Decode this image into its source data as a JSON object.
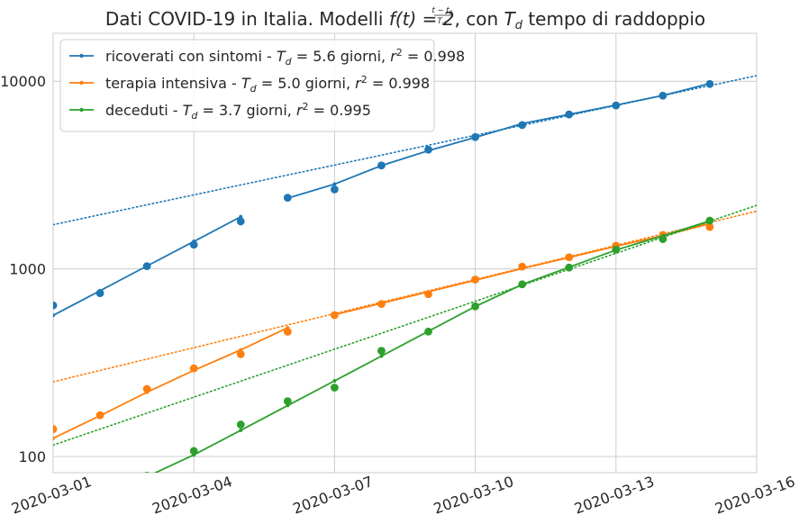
{
  "chart_data": {
    "type": "line",
    "title": {
      "prefix": "Dati COVID-19 in Italia. Modelli ",
      "formula_f": "f(t) = 2",
      "exp_num": "t − t",
      "exp_num_sub": "0",
      "exp_den": "T",
      "exp_den_sub": "d",
      "middle": ", con ",
      "var": "T",
      "var_sub": "d",
      "suffix": " tempo di raddoppio"
    },
    "xlabel": "",
    "ylabel": "",
    "y_scale": "log",
    "x_unit": "days since 2020-03-01",
    "xlim": [
      0,
      15
    ],
    "ylim": [
      82,
      18000
    ],
    "x_ticks": [
      0,
      3,
      6,
      9,
      12,
      15
    ],
    "x_tick_labels": [
      "2020-03-01",
      "2020-03-04",
      "2020-03-07",
      "2020-03-10",
      "2020-03-13",
      "2020-03-16"
    ],
    "y_ticks": [
      100,
      1000,
      10000
    ],
    "y_tick_labels": [
      "100",
      "1000",
      "10000"
    ],
    "grid": true,
    "legend_position": "top-left",
    "series": [
      {
        "name": "ricoverati con sintomi",
        "color": "#1f77b4",
        "legend": {
          "prefix": "ricoverati con sintomi - ",
          "td_value": "5.6",
          "r2_value": "0.998"
        },
        "data": {
          "x": [
            0,
            1,
            2,
            3,
            4,
            5,
            6,
            7,
            8,
            9,
            10,
            11,
            12,
            13,
            14
          ],
          "y": [
            639,
            742,
            1034,
            1346,
            1790,
            2394,
            2651,
            3557,
            4316,
            5038,
            5838,
            6650,
            7426,
            8372,
            9663
          ]
        },
        "fit_segments": [
          {
            "x": [
              0,
              1,
              2,
              3,
              4
            ],
            "y": [
              565,
              765,
              1035,
              1400,
              1895
            ]
          },
          {
            "x": [
              5,
              6,
              7,
              8,
              9,
              10,
              11,
              12,
              13,
              14
            ],
            "y": [
              2380,
              2830,
              3550,
              4260,
              5020,
              5940,
              6650,
              7460,
              8400,
              9720
            ]
          }
        ],
        "trend": {
          "x": [
            0,
            15
          ],
          "y": [
            1720,
            10700
          ]
        }
      },
      {
        "name": "terapia intensiva",
        "color": "#ff7f0e",
        "legend": {
          "prefix": "terapia intensiva - ",
          "td_value": "5.0",
          "r2_value": "0.998"
        },
        "data": {
          "x": [
            0,
            1,
            2,
            3,
            4,
            5,
            6,
            7,
            8,
            9,
            10,
            11,
            12,
            13,
            14
          ],
          "y": [
            140,
            166,
            229,
            295,
            351,
            462,
            567,
            650,
            733,
            877,
            1028,
            1153,
            1328,
            1518,
            1672
          ]
        },
        "fit_segments": [
          {
            "x": [
              0,
              1,
              2,
              3,
              4,
              5
            ],
            "y": [
              125,
              165,
              220,
              288,
              370,
              485
            ]
          },
          {
            "x": [
              6,
              7,
              8,
              9,
              10,
              11,
              12,
              13,
              14
            ],
            "y": [
              570,
              655,
              755,
              870,
              1005,
              1150,
              1320,
              1500,
              1740
            ]
          }
        ],
        "trend": {
          "x": [
            0,
            15
          ],
          "y": [
            250,
            2030
          ]
        }
      },
      {
        "name": "deceduti",
        "color": "#2ca02c",
        "legend": {
          "prefix": "deceduti - ",
          "td_value": "3.7",
          "r2_value": "0.995"
        },
        "data": {
          "x": [
            2,
            3,
            4,
            5,
            6,
            7,
            8,
            9,
            10,
            11,
            12,
            13,
            14
          ],
          "y": [
            79,
            107,
            148,
            197,
            233,
            366,
            463,
            631,
            827,
            1016,
            1266,
            1441,
            1809
          ]
        },
        "fit_segments": [
          {
            "x": [
              2,
              3,
              4,
              5,
              6,
              7,
              8,
              9,
              10,
              11,
              12,
              13,
              14
            ],
            "y": [
              78,
              102,
              138,
              187,
              253,
              343,
              465,
              630,
              825,
              1020,
              1260,
              1500,
              1800
            ]
          }
        ],
        "trend": {
          "x": [
            0,
            15
          ],
          "y": [
            115,
            2180
          ]
        }
      }
    ]
  }
}
